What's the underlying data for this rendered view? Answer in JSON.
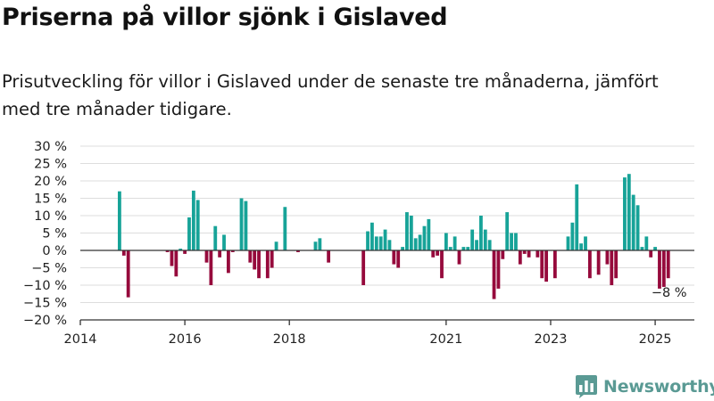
{
  "header": {
    "title": "Priserna på villor sjönk i Gislaved",
    "subtitle": "Prisutveckling för villor i Gislaved under de senaste tre månaderna, jämfört med tre månader tidigare."
  },
  "branding": {
    "name": "Newsworthy",
    "logo_icon": "bar-chart-bubble-icon",
    "color": "#5a9a94"
  },
  "chart_data": {
    "type": "bar",
    "y_ticks": [
      "30 %",
      "25 %",
      "20 %",
      "15 %",
      "10 %",
      "5 %",
      "0 %",
      "−5 %",
      "−10 %",
      "−15 %",
      "−20 %"
    ],
    "y_tick_values": [
      30,
      25,
      20,
      15,
      10,
      5,
      0,
      -5,
      -10,
      -15,
      -20
    ],
    "ylim": [
      -20,
      30
    ],
    "x_ticks": [
      "2014",
      "2016",
      "2018",
      "2021",
      "2023",
      "2025"
    ],
    "x_tick_values": [
      "2014-01",
      "2016-01",
      "2018-01",
      "2021-01",
      "2023-01",
      "2025-01"
    ],
    "xlim": [
      "2014-01",
      "2025-10"
    ],
    "grid": true,
    "colors": {
      "positive": "#17a398",
      "negative": "#960a3c",
      "zero_line": "#333333",
      "grid": "#dddddd"
    },
    "annotation": {
      "text": "−8 %",
      "x": "2025-04",
      "y": -8
    },
    "x": [
      "2014-10",
      "2014-11",
      "2014-12",
      "2015-09",
      "2015-10",
      "2015-11",
      "2015-12",
      "2016-01",
      "2016-02",
      "2016-03",
      "2016-04",
      "2016-05",
      "2016-06",
      "2016-07",
      "2016-08",
      "2016-09",
      "2016-10",
      "2016-11",
      "2016-12",
      "2017-01",
      "2017-02",
      "2017-03",
      "2017-04",
      "2017-05",
      "2017-06",
      "2017-07",
      "2017-08",
      "2017-09",
      "2017-10",
      "2017-11",
      "2017-12",
      "2018-01",
      "2018-02",
      "2018-03",
      "2018-04",
      "2018-05",
      "2018-06",
      "2018-07",
      "2018-08",
      "2018-09",
      "2018-10",
      "2019-06",
      "2019-07",
      "2019-08",
      "2019-09",
      "2019-10",
      "2019-11",
      "2019-12",
      "2020-01",
      "2020-02",
      "2020-03",
      "2020-04",
      "2020-05",
      "2020-06",
      "2020-07",
      "2020-08",
      "2020-09",
      "2020-10",
      "2020-11",
      "2020-12",
      "2021-01",
      "2021-02",
      "2021-03",
      "2021-04",
      "2021-05",
      "2021-06",
      "2021-07",
      "2021-08",
      "2021-09",
      "2021-10",
      "2021-11",
      "2021-12",
      "2022-01",
      "2022-02",
      "2022-03",
      "2022-04",
      "2022-05",
      "2022-06",
      "2022-07",
      "2022-08",
      "2022-09",
      "2022-10",
      "2022-11",
      "2022-12",
      "2023-01",
      "2023-02",
      "2023-03",
      "2023-04",
      "2023-05",
      "2023-06",
      "2023-07",
      "2023-08",
      "2023-09",
      "2023-10",
      "2023-11",
      "2023-12",
      "2024-01",
      "2024-02",
      "2024-03",
      "2024-04",
      "2024-05",
      "2024-06",
      "2024-07",
      "2024-08",
      "2024-09",
      "2024-10",
      "2024-11",
      "2024-12",
      "2025-01",
      "2025-02",
      "2025-03",
      "2025-04"
    ],
    "values": [
      17,
      -1.5,
      -13.5,
      -0.5,
      -4.5,
      -7.5,
      0.5,
      -1,
      9.5,
      17.2,
      14.5,
      0,
      -3.5,
      -10,
      7,
      -2,
      4.5,
      -6.5,
      -0.5,
      0,
      15,
      14.2,
      -3.5,
      -5.5,
      -8,
      0,
      -8,
      -5,
      2.5,
      0,
      12.5,
      0,
      0,
      -0.5,
      0,
      0,
      0,
      2.5,
      3.5,
      0,
      -3.5,
      -10,
      5.5,
      8,
      4,
      4,
      6,
      3,
      -4,
      -5,
      1,
      11,
      10,
      3.5,
      4.5,
      7,
      9,
      -2,
      -1.5,
      -8,
      5,
      1,
      4,
      -4,
      1,
      1,
      6,
      3,
      10,
      6,
      3,
      -14,
      -11,
      -2.5,
      11,
      5,
      5,
      -4,
      -1,
      -2,
      0,
      -2,
      -8,
      -9,
      0,
      -8,
      0,
      0,
      4,
      8,
      19,
      2,
      4,
      -8,
      0,
      -7,
      0,
      -4,
      -10,
      -8,
      0,
      21,
      22,
      16,
      13,
      1,
      4,
      -2,
      1,
      -11,
      -10.5,
      -8
    ]
  }
}
